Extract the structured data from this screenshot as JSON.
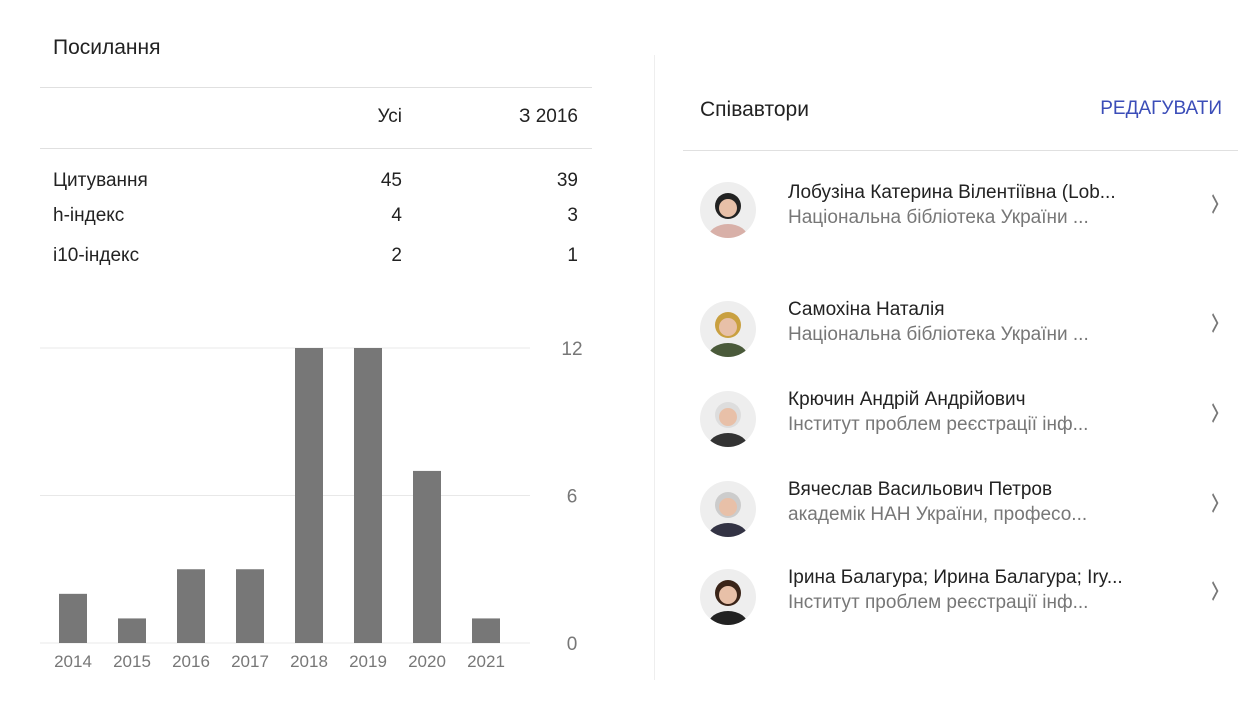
{
  "citations": {
    "title": "Посилання",
    "headers": [
      "Усі",
      "З 2016"
    ],
    "rows": [
      [
        "Цитування",
        "45",
        "39"
      ],
      [
        "h-індекс",
        "4",
        "3"
      ],
      [
        "i10-індекс",
        "2",
        "1"
      ]
    ]
  },
  "chart_data": {
    "type": "bar",
    "categories": [
      "2014",
      "2015",
      "2016",
      "2017",
      "2018",
      "2019",
      "2020",
      "2021"
    ],
    "values": [
      2,
      1,
      3,
      3,
      12,
      12,
      7,
      1
    ],
    "color": "#777777",
    "ylim": [
      0,
      12
    ],
    "yticks": [
      0,
      6,
      12
    ],
    "grid": true
  },
  "coauthors": {
    "title": "Співавтори",
    "edit": "РЕДАГУВАТИ",
    "items": [
      {
        "name": "Лобузіна Катерина Вілентіївна (Lob...",
        "affiliation": "Національна бібліотека України ..."
      },
      {
        "name": "Самохіна Наталія",
        "affiliation": "Національна бібліотека України ..."
      },
      {
        "name": "Крючин Андрій Андрійович",
        "affiliation": "Інститут проблем реєстрації інф..."
      },
      {
        "name": "Вячеслав Васильович Петров",
        "affiliation": "академік НАН України, професо..."
      },
      {
        "name": "Ірина Балагура; Ирина Балагура; Iry...",
        "affiliation": "Інститут проблем реєстрації інф..."
      }
    ]
  }
}
